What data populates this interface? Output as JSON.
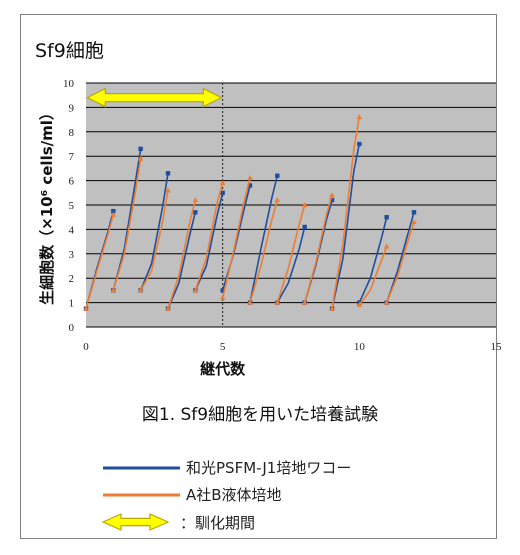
{
  "panel_title": "Sf9細胞",
  "caption": "図1. Sf9細胞を用いた培養試験",
  "colors": {
    "wako": "#1f4e9e",
    "other": "#ee7d31",
    "arrow_fill": "#ffff00",
    "arrow_stroke": "#b8a800",
    "plot_bg": "#c0c0c0"
  },
  "legend": {
    "wako": "和光PSFM-J1培地ワコー",
    "other": "A社B液体培地",
    "acclimation": "：馴化期間"
  },
  "chart_data": {
    "type": "line",
    "xlabel": "継代数",
    "ylabel": "生細胞数（×10⁶ cells/ml）",
    "xlim": [
      0,
      15
    ],
    "ylim": [
      0,
      10
    ],
    "x_ticks": [
      0,
      5,
      10,
      15
    ],
    "y_ticks": [
      0,
      1,
      2,
      3,
      4,
      5,
      6,
      7,
      8,
      9,
      10
    ],
    "grid": true,
    "acclimation_end_x": 5,
    "acclimation_arrow": {
      "x_start": 0.05,
      "x_end": 4.95,
      "y": 9.4
    },
    "series": [
      {
        "name": "和光PSFM-J1培地ワコー",
        "color_key": "wako",
        "segments": [
          [
            [
              0,
              0.75
            ],
            [
              0.4,
              2.4
            ],
            [
              0.8,
              3.9
            ],
            [
              1,
              4.75
            ]
          ],
          [
            [
              1,
              1.5
            ],
            [
              1.4,
              3.2
            ],
            [
              1.8,
              5.9
            ],
            [
              2,
              7.3
            ]
          ],
          [
            [
              2,
              1.5
            ],
            [
              2.4,
              2.6
            ],
            [
              2.8,
              4.9
            ],
            [
              3,
              6.3
            ]
          ],
          [
            [
              3,
              0.75
            ],
            [
              3.4,
              1.8
            ],
            [
              3.8,
              3.8
            ],
            [
              4,
              4.7
            ]
          ],
          [
            [
              4,
              1.5
            ],
            [
              4.4,
              2.5
            ],
            [
              4.8,
              4.6
            ],
            [
              5,
              5.5
            ]
          ],
          [
            [
              5,
              1.5
            ],
            [
              5.4,
              3.0
            ],
            [
              5.8,
              4.9
            ],
            [
              6,
              5.8
            ]
          ],
          [
            [
              6,
              1.0
            ],
            [
              6.4,
              3.2
            ],
            [
              6.8,
              5.3
            ],
            [
              7,
              6.2
            ]
          ],
          [
            [
              7,
              1.0
            ],
            [
              7.4,
              1.8
            ],
            [
              7.8,
              3.2
            ],
            [
              8,
              4.1
            ]
          ],
          [
            [
              8,
              1.0
            ],
            [
              8.4,
              2.5
            ],
            [
              8.8,
              4.4
            ],
            [
              9,
              5.2
            ]
          ],
          [
            [
              9,
              0.75
            ],
            [
              9.4,
              2.8
            ],
            [
              9.8,
              6.4
            ],
            [
              10,
              7.5
            ]
          ],
          [
            [
              10,
              1.0
            ],
            [
              10.4,
              2.0
            ],
            [
              10.8,
              3.6
            ],
            [
              11,
              4.5
            ]
          ],
          [
            [
              11,
              1.0
            ],
            [
              11.4,
              2.3
            ],
            [
              11.8,
              3.9
            ],
            [
              12,
              4.7
            ]
          ]
        ]
      },
      {
        "name": "A社B液体培地",
        "color_key": "other",
        "segments": [
          [
            [
              0,
              0.75
            ],
            [
              0.4,
              2.3
            ],
            [
              0.8,
              3.8
            ],
            [
              1,
              4.6
            ]
          ],
          [
            [
              1,
              1.5
            ],
            [
              1.4,
              3.0
            ],
            [
              1.8,
              5.5
            ],
            [
              2,
              6.9
            ]
          ],
          [
            [
              2,
              1.5
            ],
            [
              2.4,
              2.3
            ],
            [
              2.8,
              4.3
            ],
            [
              3,
              5.6
            ]
          ],
          [
            [
              3,
              0.75
            ],
            [
              3.4,
              2.1
            ],
            [
              3.8,
              4.3
            ],
            [
              4,
              5.2
            ]
          ],
          [
            [
              4,
              1.5
            ],
            [
              4.4,
              2.8
            ],
            [
              4.8,
              5.1
            ],
            [
              5,
              5.9
            ]
          ],
          [
            [
              5,
              1.2
            ],
            [
              5.4,
              3.1
            ],
            [
              5.8,
              5.2
            ],
            [
              6,
              6.1
            ]
          ],
          [
            [
              6,
              1.0
            ],
            [
              6.4,
              2.5
            ],
            [
              6.8,
              4.4
            ],
            [
              7,
              5.2
            ]
          ],
          [
            [
              7,
              1.0
            ],
            [
              7.4,
              2.4
            ],
            [
              7.8,
              4.2
            ],
            [
              8,
              5.0
            ]
          ],
          [
            [
              8,
              1.0
            ],
            [
              8.4,
              2.6
            ],
            [
              8.8,
              4.6
            ],
            [
              9,
              5.4
            ]
          ],
          [
            [
              9,
              0.75
            ],
            [
              9.4,
              3.4
            ],
            [
              9.8,
              7.3
            ],
            [
              10,
              8.6
            ]
          ],
          [
            [
              10,
              0.9
            ],
            [
              10.4,
              1.5
            ],
            [
              10.8,
              2.7
            ],
            [
              11,
              3.3
            ]
          ],
          [
            [
              11,
              1.0
            ],
            [
              11.4,
              2.1
            ],
            [
              11.8,
              3.6
            ],
            [
              12,
              4.3
            ]
          ]
        ]
      }
    ]
  }
}
